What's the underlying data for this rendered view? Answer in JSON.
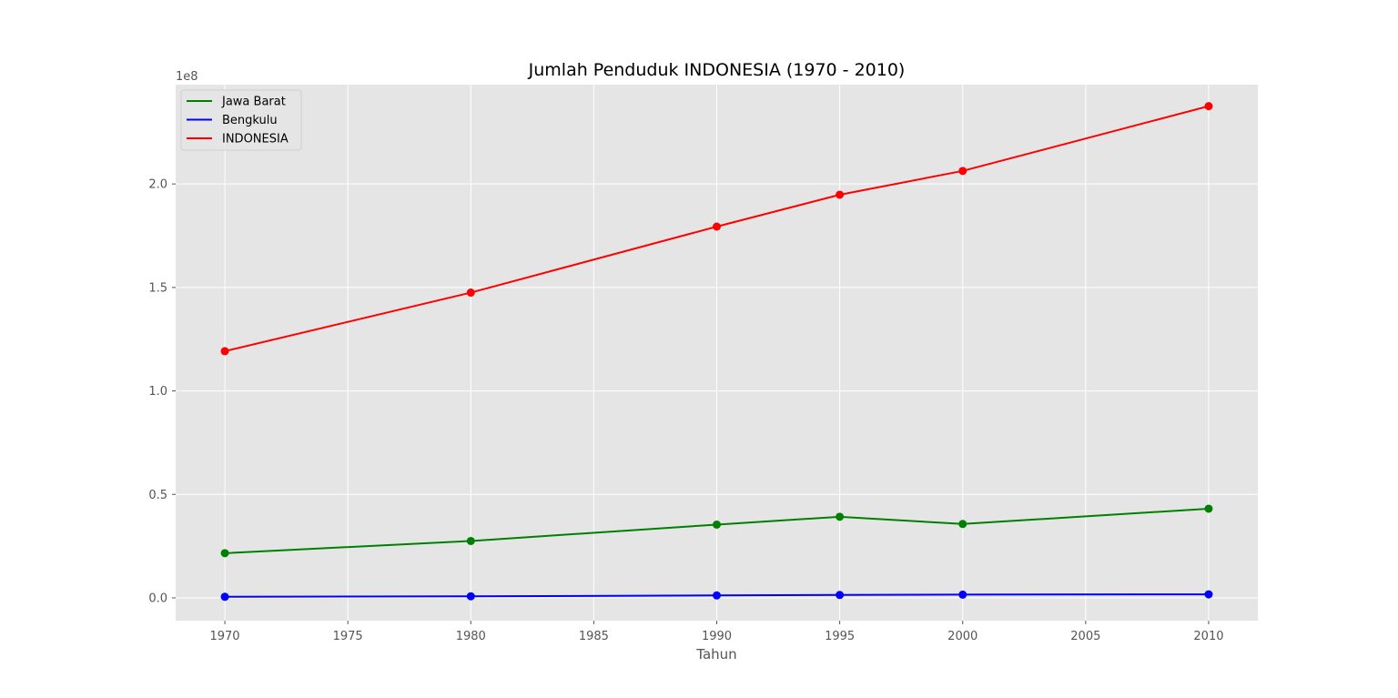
{
  "chart_data": {
    "type": "line",
    "title": "Jumlah Penduduk INDONESIA (1970 - 2010)",
    "xlabel": "Tahun",
    "ylabel": "",
    "y_offset_text": "1e8",
    "x": [
      1970,
      1980,
      1990,
      1995,
      2000,
      2010
    ],
    "xlim": [
      1968,
      2012
    ],
    "ylim": [
      -11000000,
      248000000
    ],
    "x_ticks": [
      1970,
      1975,
      1980,
      1985,
      1990,
      1995,
      2000,
      2005,
      2010
    ],
    "y_ticks": [
      0,
      50000000,
      100000000,
      150000000,
      200000000
    ],
    "y_tick_labels": [
      "0.0",
      "0.5",
      "1.0",
      "1.5",
      "2.0"
    ],
    "grid": true,
    "legend_position": "top-left",
    "series": [
      {
        "name": "Jawa Barat",
        "color": "#008000",
        "values": [
          21600000,
          27500000,
          35400000,
          39200000,
          35700000,
          43100000
        ]
      },
      {
        "name": "Bengkulu",
        "color": "#0000ff",
        "values": [
          520000,
          770000,
          1180000,
          1410000,
          1570000,
          1720000
        ]
      },
      {
        "name": "INDONESIA",
        "color": "#ff0000",
        "values": [
          119200000,
          147500000,
          179400000,
          194800000,
          206300000,
          237600000
        ]
      }
    ]
  }
}
